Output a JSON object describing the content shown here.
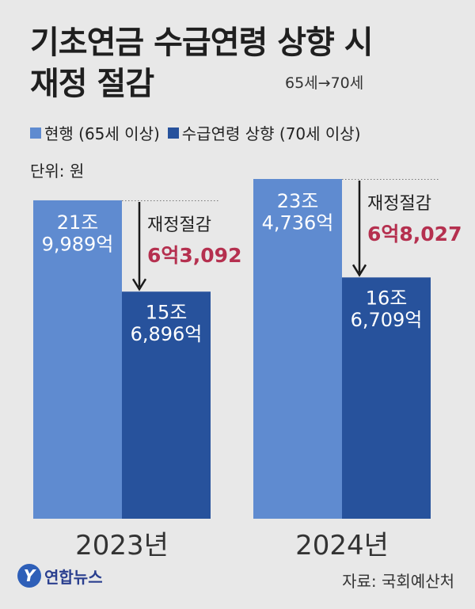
{
  "header": {
    "title_line1": "기초연금 수급연령 상향 시",
    "title_line2": "재정 절감",
    "subtitle": "65세→70세"
  },
  "legend": [
    {
      "label": "현행 (65세 이상)",
      "color": "#5f8bd0"
    },
    {
      "label": "수급연령 상향 (70세 이상)",
      "color": "#27529c"
    }
  ],
  "unit_label": "단위: 원",
  "chart_data": {
    "type": "bar",
    "categories": [
      "2023년",
      "2024년"
    ],
    "series": [
      {
        "name": "현행 (65세 이상)",
        "values": [
          219989,
          234736
        ],
        "labels": [
          "21조\n9,989억",
          "23조\n4,736억"
        ]
      },
      {
        "name": "수급연령 상향 (70세 이상)",
        "values": [
          156896,
          166709
        ],
        "labels": [
          "15조\n6,896억",
          "16조\n6,709억"
        ]
      }
    ],
    "savings": [
      {
        "label": "재정절감",
        "value": "6억3,092"
      },
      {
        "label": "재정절감",
        "value": "6억8,027"
      }
    ],
    "ylim": [
      0,
      250000
    ],
    "colors": {
      "current": "#5f8bd0",
      "raised": "#27529c",
      "savings_value": "#b5304f"
    }
  },
  "footer": {
    "logo_text": "연합뉴스",
    "logo_mark": "Y",
    "source": "자료: 국회예산처"
  }
}
